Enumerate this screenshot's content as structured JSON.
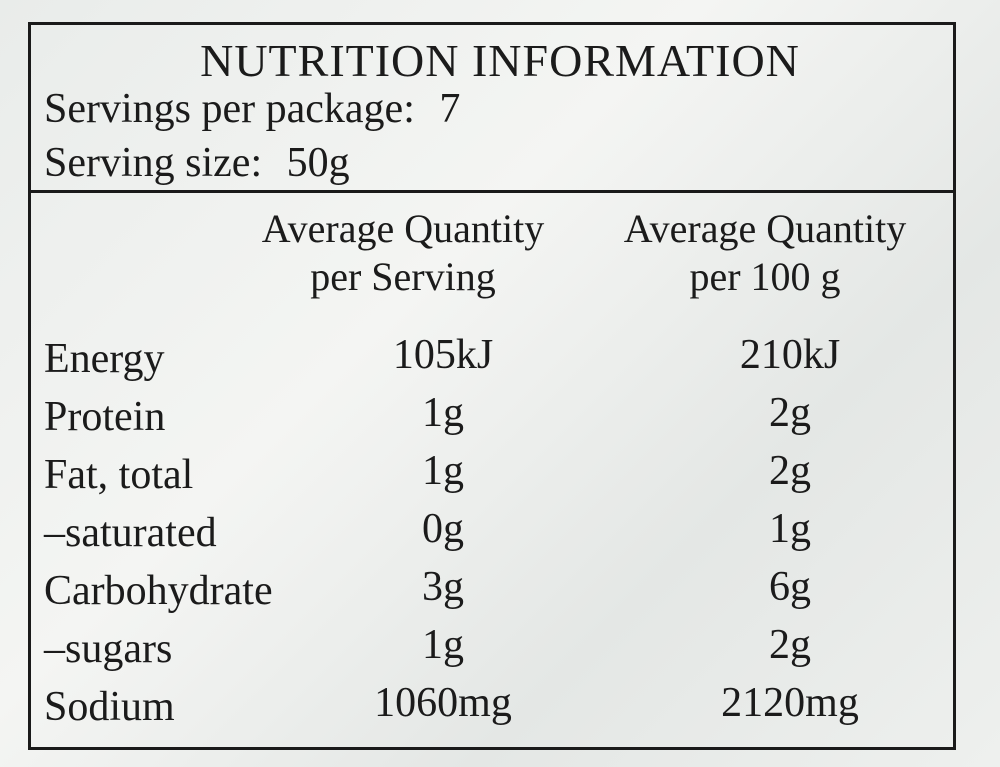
{
  "header": {
    "title": "NUTRITION INFORMATION",
    "servings": {
      "label": "Servings per package:",
      "value": "7"
    },
    "serving_size": {
      "label": "Serving size:",
      "value": "50g"
    }
  },
  "table": {
    "columns": [
      "Average Quantity per Serving",
      "Average Quantity per 100 g"
    ],
    "rows": [
      [
        "Energy",
        "105kJ",
        "210kJ"
      ],
      [
        "Protein",
        "1g",
        "2g"
      ],
      [
        "Fat, total",
        "1g",
        "2g"
      ],
      [
        "–saturated",
        "0g",
        "1g"
      ],
      [
        "Carbohydrate",
        "3g",
        "6g"
      ],
      [
        "–sugars",
        "1g",
        "2g"
      ],
      [
        "Sodium",
        "1060mg",
        "2120mg"
      ]
    ]
  }
}
